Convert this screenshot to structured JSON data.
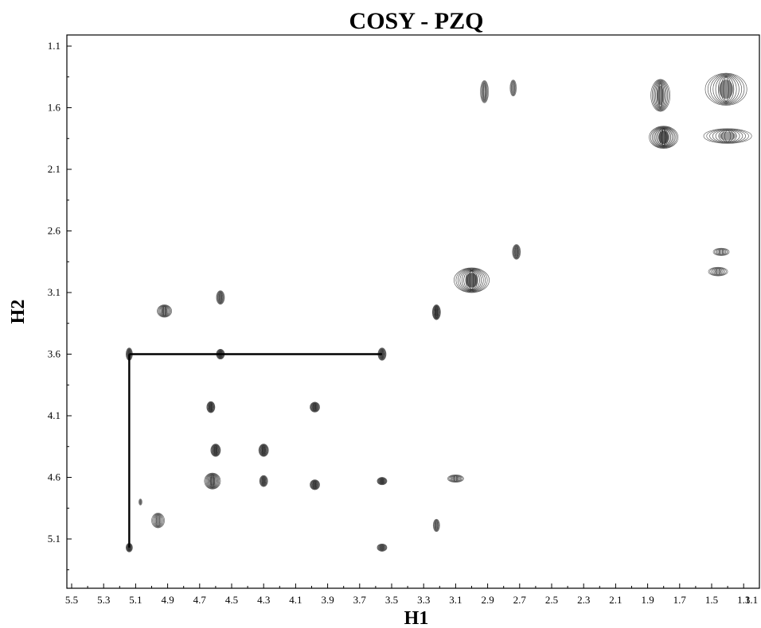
{
  "chart_data": {
    "type": "contour",
    "title": "COSY - PZQ",
    "xlabel": "H1",
    "ylabel": "H2",
    "xlim": [
      5.5,
      1.1
    ],
    "ylim": [
      1.1,
      5.5
    ],
    "x_ticks": [
      "5.5",
      "5.3",
      "5.1",
      "4.9",
      "4.7",
      "4.5",
      "4.3",
      "4.1",
      "3.9",
      "3.7",
      "3.5",
      "3.3",
      "3.1",
      "2.9",
      "2.7",
      "2.5",
      "2.3",
      "2.1",
      "1.9",
      "1.7",
      "1.5",
      "1.3",
      "1.1"
    ],
    "y_ticks": [
      "1.1",
      "1.6",
      "2.1",
      "2.6",
      "3.1",
      "3.6",
      "4.1",
      "4.6",
      "5.1"
    ],
    "peaks": [
      {
        "x": 1.82,
        "y": 1.5,
        "w": 0.12,
        "h": 0.26,
        "level": 0.7
      },
      {
        "x": 1.41,
        "y": 1.45,
        "w": 0.26,
        "h": 0.26,
        "level": 0.7
      },
      {
        "x": 2.92,
        "y": 1.47,
        "w": 0.05,
        "h": 0.18,
        "level": 0.4
      },
      {
        "x": 2.74,
        "y": 1.44,
        "w": 0.04,
        "h": 0.13,
        "level": 0.3
      },
      {
        "x": 1.8,
        "y": 1.84,
        "w": 0.18,
        "h": 0.18,
        "level": 0.95
      },
      {
        "x": 1.4,
        "y": 1.83,
        "w": 0.3,
        "h": 0.12,
        "level": 0.6
      },
      {
        "x": 2.72,
        "y": 2.77,
        "w": 0.05,
        "h": 0.12,
        "level": 0.6
      },
      {
        "x": 1.44,
        "y": 2.77,
        "w": 0.1,
        "h": 0.06,
        "level": 0.45
      },
      {
        "x": 1.46,
        "y": 2.93,
        "w": 0.12,
        "h": 0.07,
        "level": 0.5
      },
      {
        "x": 3.0,
        "y": 3.0,
        "w": 0.22,
        "h": 0.2,
        "level": 0.9
      },
      {
        "x": 3.22,
        "y": 3.26,
        "w": 0.05,
        "h": 0.12,
        "level": 0.9
      },
      {
        "x": 4.92,
        "y": 3.25,
        "w": 0.09,
        "h": 0.1,
        "level": 0.7
      },
      {
        "x": 4.57,
        "y": 3.14,
        "w": 0.05,
        "h": 0.11,
        "level": 0.6
      },
      {
        "x": 5.14,
        "y": 3.6,
        "w": 0.04,
        "h": 0.1,
        "level": 0.8
      },
      {
        "x": 4.57,
        "y": 3.6,
        "w": 0.05,
        "h": 0.08,
        "level": 0.9
      },
      {
        "x": 3.56,
        "y": 3.6,
        "w": 0.05,
        "h": 0.1,
        "level": 0.8
      },
      {
        "x": 4.63,
        "y": 4.03,
        "w": 0.05,
        "h": 0.09,
        "level": 0.9
      },
      {
        "x": 3.98,
        "y": 4.03,
        "w": 0.06,
        "h": 0.08,
        "level": 0.9
      },
      {
        "x": 4.6,
        "y": 4.38,
        "w": 0.06,
        "h": 0.1,
        "level": 0.9
      },
      {
        "x": 4.3,
        "y": 4.38,
        "w": 0.06,
        "h": 0.1,
        "level": 0.9
      },
      {
        "x": 4.62,
        "y": 4.63,
        "w": 0.1,
        "h": 0.13,
        "level": 0.75
      },
      {
        "x": 4.3,
        "y": 4.63,
        "w": 0.05,
        "h": 0.09,
        "level": 0.8
      },
      {
        "x": 3.98,
        "y": 4.66,
        "w": 0.06,
        "h": 0.08,
        "level": 0.9
      },
      {
        "x": 3.56,
        "y": 4.63,
        "w": 0.06,
        "h": 0.06,
        "level": 0.9
      },
      {
        "x": 3.1,
        "y": 4.61,
        "w": 0.1,
        "h": 0.06,
        "level": 0.6
      },
      {
        "x": 3.22,
        "y": 4.99,
        "w": 0.04,
        "h": 0.1,
        "level": 0.5
      },
      {
        "x": 4.96,
        "y": 4.95,
        "w": 0.08,
        "h": 0.12,
        "level": 0.5
      },
      {
        "x": 5.07,
        "y": 4.8,
        "w": 0.02,
        "h": 0.05,
        "level": 0.3
      },
      {
        "x": 5.14,
        "y": 5.17,
        "w": 0.04,
        "h": 0.07,
        "level": 0.9
      },
      {
        "x": 3.56,
        "y": 5.17,
        "w": 0.06,
        "h": 0.06,
        "level": 0.8
      }
    ],
    "annotation_lines": [
      {
        "x1": 5.14,
        "y1": 3.6,
        "x2": 3.56,
        "y2": 3.6
      },
      {
        "x1": 5.14,
        "y1": 3.6,
        "x2": 5.14,
        "y2": 5.17
      }
    ]
  }
}
